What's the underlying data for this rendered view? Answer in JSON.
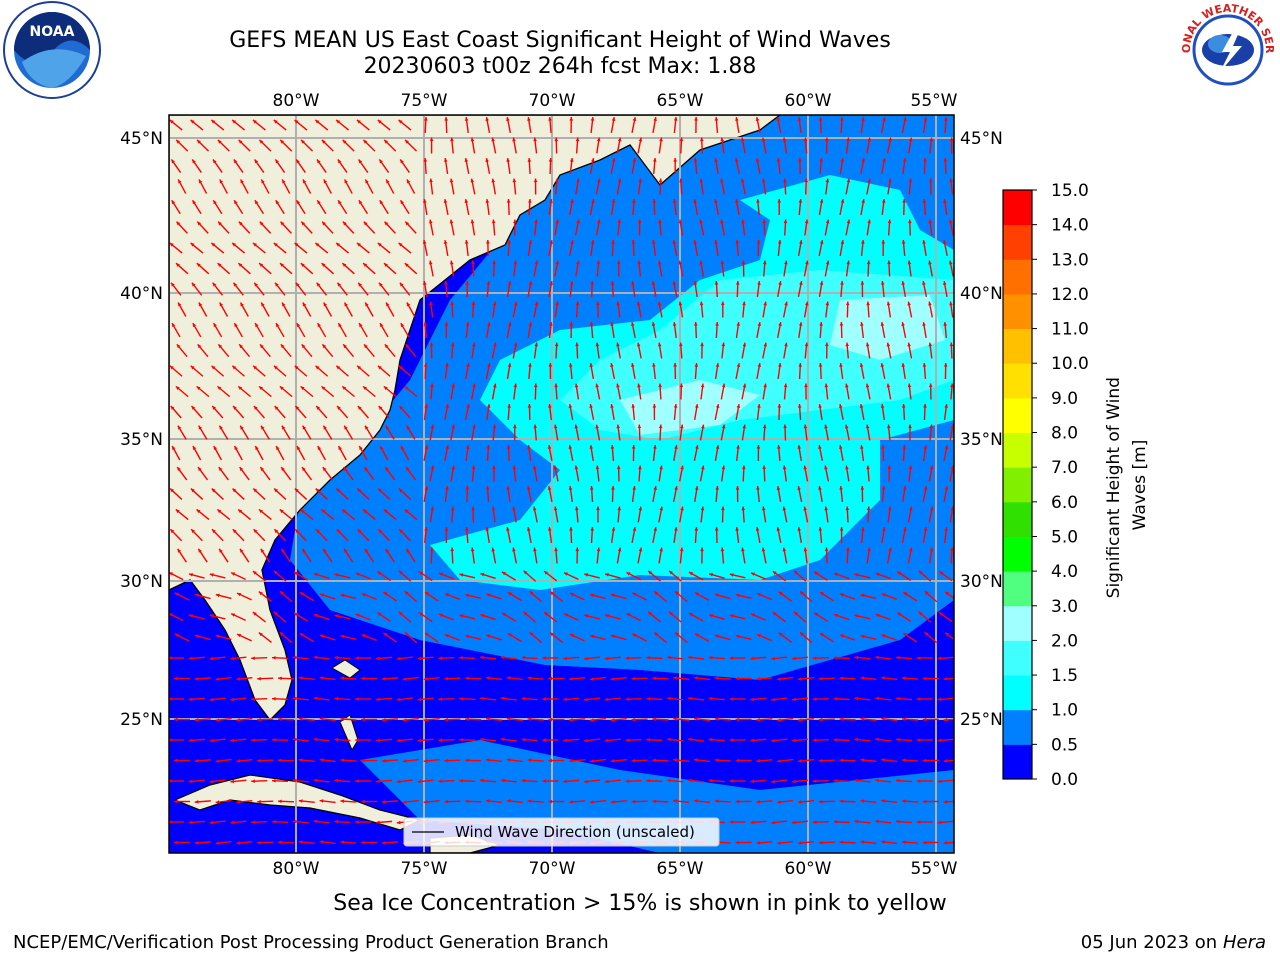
{
  "header": {
    "title_line1": "GEFS MEAN US East Coast Significant Height of Wind Waves",
    "title_line2": "20230603 t00z 264h fcst   Max: 1.88"
  },
  "logos": {
    "left": {
      "name": "noaa-logo",
      "text": "NOAA"
    },
    "right": {
      "name": "nws-logo",
      "text": "NATIONAL WEATHER SERVICE"
    }
  },
  "map": {
    "lon_labels": [
      "80°W",
      "75°W",
      "70°W",
      "65°W",
      "60°W",
      "55°W"
    ],
    "lat_labels": [
      "45°N",
      "40°N",
      "35°N",
      "30°N",
      "25°N"
    ],
    "legend_label": "Wind Wave Direction (unscaled)",
    "colors": {
      "land": "#efefdc",
      "wave_0_0.5": "#0000ff",
      "wave_0.5_1.0": "#0080ff",
      "wave_1.0_1.5": "#00ffff",
      "wave_1.5_2.0": "#40ffff",
      "wave_2.0_3.0": "#a0ffff",
      "arrow": "#ff0000",
      "grid": "#b0b0b0"
    }
  },
  "colorbar": {
    "label": "Significant Height of Wind Waves [m]",
    "ticks": [
      "0.0",
      "0.5",
      "1.0",
      "1.5",
      "2.0",
      "3.0",
      "4.0",
      "5.0",
      "6.0",
      "7.0",
      "8.0",
      "9.0",
      "10.0",
      "11.0",
      "12.0",
      "13.0",
      "14.0",
      "15.0"
    ],
    "colors": [
      "#0000ff",
      "#0080ff",
      "#00ffff",
      "#40ffff",
      "#a0ffff",
      "#50ff80",
      "#00ff00",
      "#30e000",
      "#80f000",
      "#c8ff00",
      "#ffff00",
      "#ffe000",
      "#ffc000",
      "#ff9000",
      "#ff7000",
      "#ff4000",
      "#ff0000"
    ]
  },
  "footer": {
    "ice_note": "Sea Ice Concentration > 15% is shown in pink to yellow",
    "credit": "NCEP/EMC/Verification Post Processing Product Generation Branch",
    "date": "05 Jun 2023 on",
    "machine": "Hera"
  }
}
